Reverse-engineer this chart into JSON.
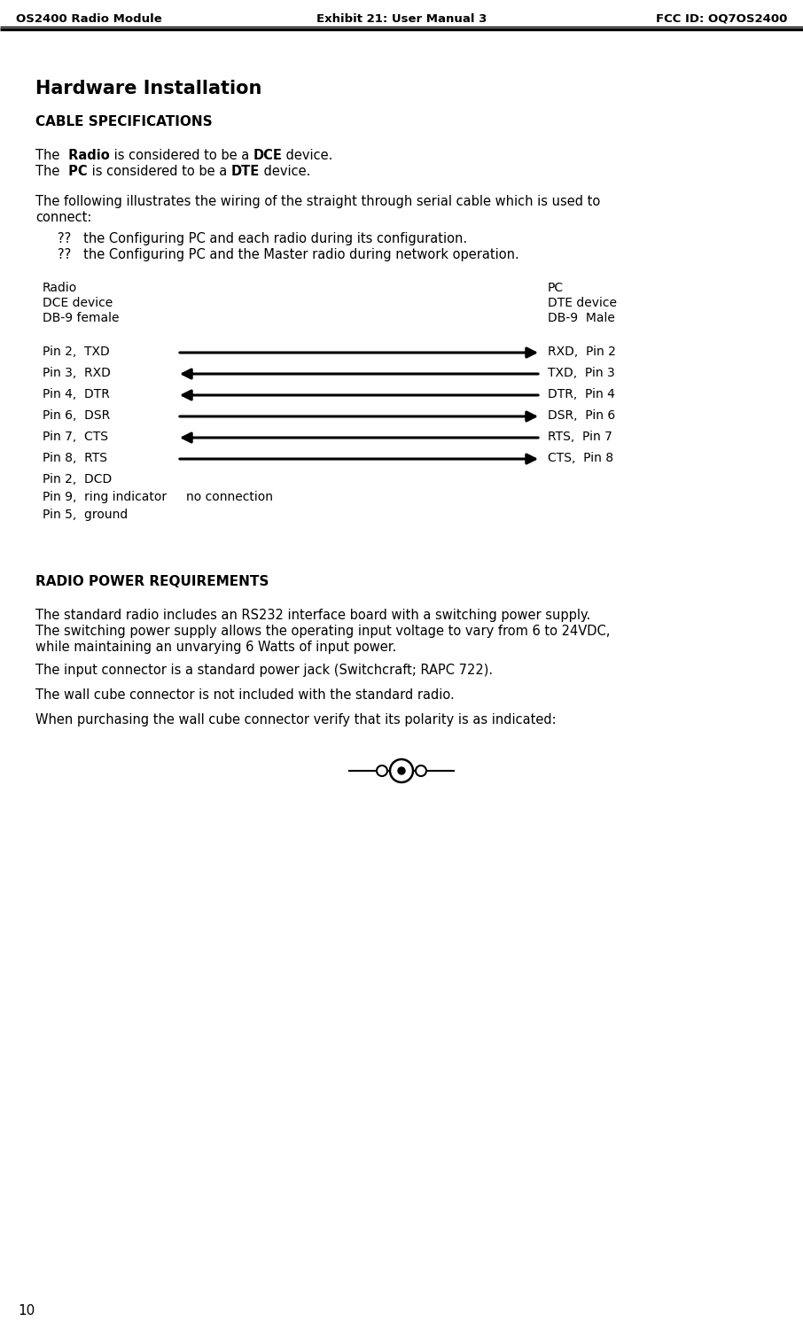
{
  "header_left": "OS2400 Radio Module",
  "header_center": "Exhibit 21: User Manual 3",
  "header_right": "FCC ID: OQ7OS2400",
  "page_number": "10",
  "section_title": "Hardware Installation",
  "subsection1": "CABLE SPECIFICATIONS",
  "subsection2": "RADIO POWER REQUIREMENTS",
  "para1_parts1": [
    [
      "The ",
      false
    ],
    [
      " Radio",
      true
    ],
    [
      " is considered to be a ",
      false
    ],
    [
      "DCE",
      true
    ],
    [
      " device.",
      false
    ]
  ],
  "para1_parts2": [
    [
      "The ",
      false
    ],
    [
      " PC",
      true
    ],
    [
      " is considered to be a ",
      false
    ],
    [
      "DTE",
      true
    ],
    [
      " device.",
      false
    ]
  ],
  "para2_line1": "The following illustrates the wiring of the straight through serial cable which is used to",
  "para2_line2": "connect:",
  "bullet1": "??   the Configuring PC and each radio during its configuration.",
  "bullet2": "??   the Configuring PC and the Master radio during network operation.",
  "diag_radio_label": "Radio",
  "diag_radio_dce": "DCE device",
  "diag_radio_db9": "DB-9 female",
  "diag_pc_label": "PC",
  "diag_pc_dte": "DTE device",
  "diag_pc_db9": "DB-9  Male",
  "connections": [
    {
      "left": "Pin 2,  TXD",
      "right": "RXD,  Pin 2",
      "direction": "right"
    },
    {
      "left": "Pin 3,  RXD",
      "right": "TXD,  Pin 3",
      "direction": "left"
    },
    {
      "left": "Pin 4,  DTR",
      "right": "DTR,  Pin 4",
      "direction": "left"
    },
    {
      "left": "Pin 6,  DSR",
      "right": "DSR,  Pin 6",
      "direction": "right"
    },
    {
      "left": "Pin 7,  CTS",
      "right": "RTS,  Pin 7",
      "direction": "left"
    },
    {
      "left": "Pin 8,  RTS",
      "right": "CTS,  Pin 8",
      "direction": "right"
    }
  ],
  "extra_pins": [
    "Pin 2,  DCD",
    "Pin 9,  ring indicator     no connection",
    "Pin 5,  ground"
  ],
  "power_para1_l1": "The standard radio includes an RS232 interface board with a switching power supply.",
  "power_para1_l2": "The switching power supply allows the operating input voltage to vary from 6 to 24VDC,",
  "power_para1_l3": "while maintaining an unvarying 6 Watts of input power.",
  "power_para2": "The input connector is a standard power jack (Switchcraft; RAPC 722).",
  "power_para3": "The wall cube connector is not included with the standard radio.",
  "power_para4": "When purchasing the wall cube connector verify that its polarity is as indicated:",
  "bg_color": "#ffffff",
  "text_color": "#000000",
  "header_fontsize": 9.5,
  "body_fontsize": 10.5,
  "diag_fontsize": 10.0,
  "section_fontsize": 15,
  "subsection_fontsize": 11
}
